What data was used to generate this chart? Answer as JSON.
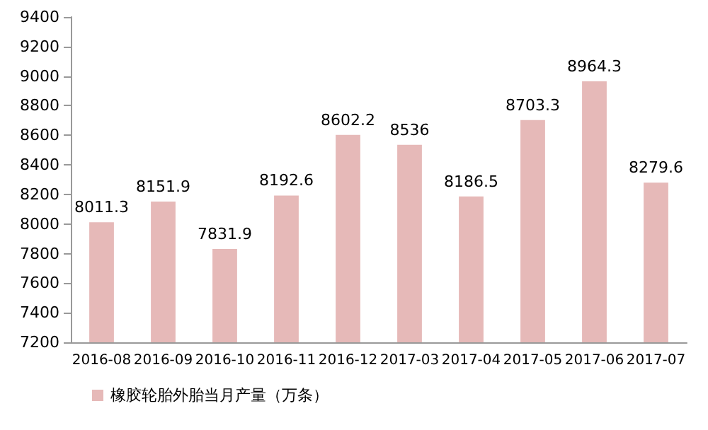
{
  "chart_data": {
    "type": "bar",
    "categories": [
      "2016-08",
      "2016-09",
      "2016-10",
      "2016-11",
      "2016-12",
      "2017-03",
      "2017-04",
      "2017-05",
      "2017-06",
      "2017-07"
    ],
    "series": [
      {
        "name": "橡胶轮胎外胎当月产量（万条）",
        "color": "#e6b9b8",
        "values": [
          8011.3,
          8151.9,
          7831.9,
          8192.6,
          8602.2,
          8536,
          8186.5,
          8703.3,
          8964.3,
          8279.6
        ]
      }
    ],
    "ylim": [
      7200,
      9400
    ],
    "yticks": [
      7200,
      7400,
      7600,
      7800,
      8000,
      8200,
      8400,
      8600,
      8800,
      9000,
      9200,
      9400
    ],
    "grid": false,
    "legend": "bottom",
    "data_labels": true
  }
}
